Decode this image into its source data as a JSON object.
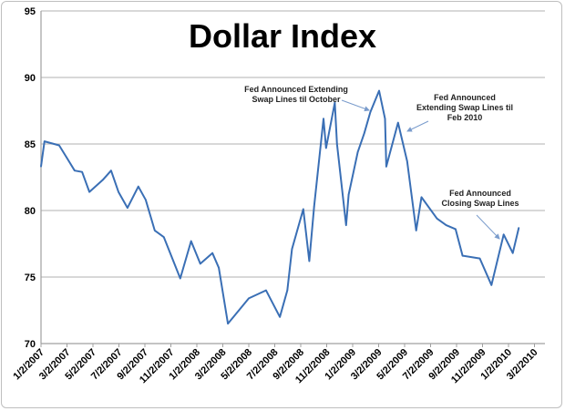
{
  "chart_data": {
    "type": "line",
    "title": "Dollar Index",
    "xlabel": "",
    "ylabel": "",
    "ylim": [
      70,
      95
    ],
    "yticks": [
      "70",
      "75",
      "80",
      "85",
      "90",
      "95"
    ],
    "xticks": [
      "1/2/2007",
      "3/2/2007",
      "5/2/2007",
      "7/2/2007",
      "9/2/2007",
      "11/2/2007",
      "1/2/2008",
      "3/2/2008",
      "5/2/2008",
      "7/2/2008",
      "9/2/2008",
      "11/2/2008",
      "1/2/2009",
      "3/2/2009",
      "5/2/2009",
      "7/2/2009",
      "9/2/2009",
      "11/2/2009",
      "1/2/2010",
      "3/2/2010"
    ],
    "grid": "horizontal",
    "legend": "none",
    "color": "#3a6fb5",
    "series": [
      {
        "x": [
          "2007-01-02",
          "2007-01-10",
          "2007-02-14",
          "2007-03-01",
          "2007-03-20",
          "2007-04-07",
          "2007-04-24",
          "2007-05-25",
          "2007-06-14",
          "2007-07-01",
          "2007-07-22",
          "2007-08-17",
          "2007-09-04",
          "2007-09-25",
          "2007-10-16",
          "2007-11-24",
          "2007-12-19",
          "2008-01-10",
          "2008-02-08",
          "2008-02-23",
          "2008-03-14",
          "2008-05-02",
          "2008-06-12",
          "2008-07-14",
          "2008-08-01",
          "2008-08-12",
          "2008-09-08",
          "2008-09-22",
          "2008-10-03",
          "2008-10-25",
          "2008-10-31",
          "2008-11-21",
          "2008-11-26",
          "2008-12-17",
          "2008-12-23",
          "2009-01-14",
          "2009-01-29",
          "2009-02-13",
          "2009-03-03",
          "2009-03-17",
          "2009-03-20",
          "2009-04-17",
          "2009-05-08",
          "2009-05-29",
          "2009-06-11",
          "2009-07-17",
          "2009-08-08",
          "2009-08-30",
          "2009-09-16",
          "2009-10-26",
          "2009-11-23",
          "2009-12-21",
          "2010-01-12",
          "2010-01-26"
        ],
        "y": [
          83.3,
          85.2,
          84.9,
          84.0,
          83.0,
          82.9,
          81.4,
          82.3,
          83.0,
          81.4,
          80.2,
          81.8,
          80.8,
          78.5,
          78.0,
          74.9,
          77.7,
          76.0,
          76.8,
          75.7,
          71.5,
          73.4,
          74.0,
          72.0,
          74.0,
          77.1,
          80.1,
          76.2,
          80.3,
          86.9,
          84.7,
          88.1,
          85.0,
          78.9,
          81.2,
          84.4,
          85.8,
          87.4,
          89.0,
          86.9,
          83.3,
          86.6,
          83.7,
          78.5,
          81.0,
          79.4,
          78.9,
          78.6,
          76.6,
          76.4,
          74.4,
          78.2,
          76.8,
          78.7
        ]
      }
    ],
    "annotations": [
      {
        "lines": [
          "Fed Announced Extending",
          "Swap Lines til October"
        ]
      },
      {
        "lines": [
          "Fed Announced",
          "Extending Swap Lines til",
          "Feb 2010"
        ]
      },
      {
        "lines": [
          "Fed Announced",
          "Closing Swap Lines"
        ]
      }
    ]
  }
}
